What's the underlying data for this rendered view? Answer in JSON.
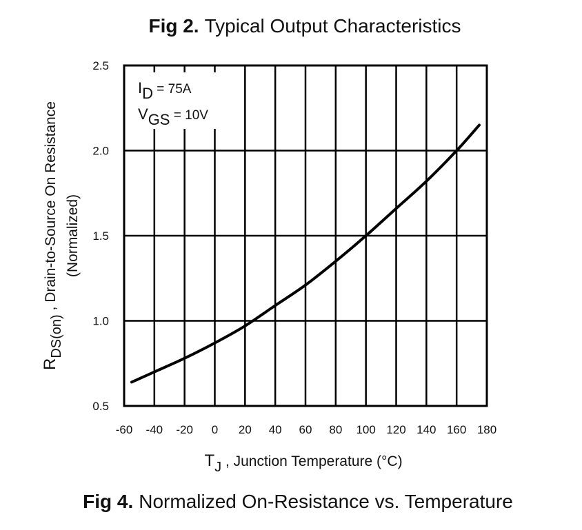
{
  "header": {
    "fig_number": "Fig 2.",
    "fig_caption": "Typical Output Characteristics"
  },
  "footer": {
    "fig_number": "Fig 4.",
    "fig_caption": "Normalized On-Resistance vs. Temperature"
  },
  "chart_data": {
    "type": "line",
    "title": "Normalized On-Resistance vs. Temperature",
    "xlabel": {
      "symbol": "T",
      "subscript": "J",
      "text": " , Junction Temperature (°C)"
    },
    "ylabel": {
      "symbol": "R",
      "subscript": "DS(on)",
      "text": " ,  Drain-to-Source On Resistance",
      "line2": "(Normalized)"
    },
    "xlim": [
      -60,
      180
    ],
    "ylim": [
      0.5,
      2.5
    ],
    "x_ticks": [
      -60,
      -40,
      -20,
      0,
      20,
      40,
      60,
      80,
      100,
      120,
      140,
      160,
      180
    ],
    "y_ticks": [
      0.5,
      1.0,
      1.5,
      2.0,
      2.5
    ],
    "y_tick_labels": [
      "0.5",
      "1.0",
      "1.5",
      "2.0",
      "2.5"
    ],
    "grid": true,
    "annotations": [
      {
        "symbol": "I",
        "subscript": "D",
        "text": " = 75A"
      },
      {
        "symbol": "V",
        "subscript": "GS",
        "text": " = 10V"
      }
    ],
    "series": [
      {
        "x": [
          -55,
          -40,
          -20,
          0,
          20,
          40,
          60,
          80,
          100,
          120,
          140,
          160,
          175
        ],
        "y": [
          0.64,
          0.7,
          0.78,
          0.87,
          0.97,
          1.09,
          1.21,
          1.35,
          1.5,
          1.66,
          1.82,
          2.0,
          2.15
        ]
      }
    ],
    "colors": {
      "line": "#000000",
      "grid": "#000000",
      "text": "#111111"
    }
  }
}
